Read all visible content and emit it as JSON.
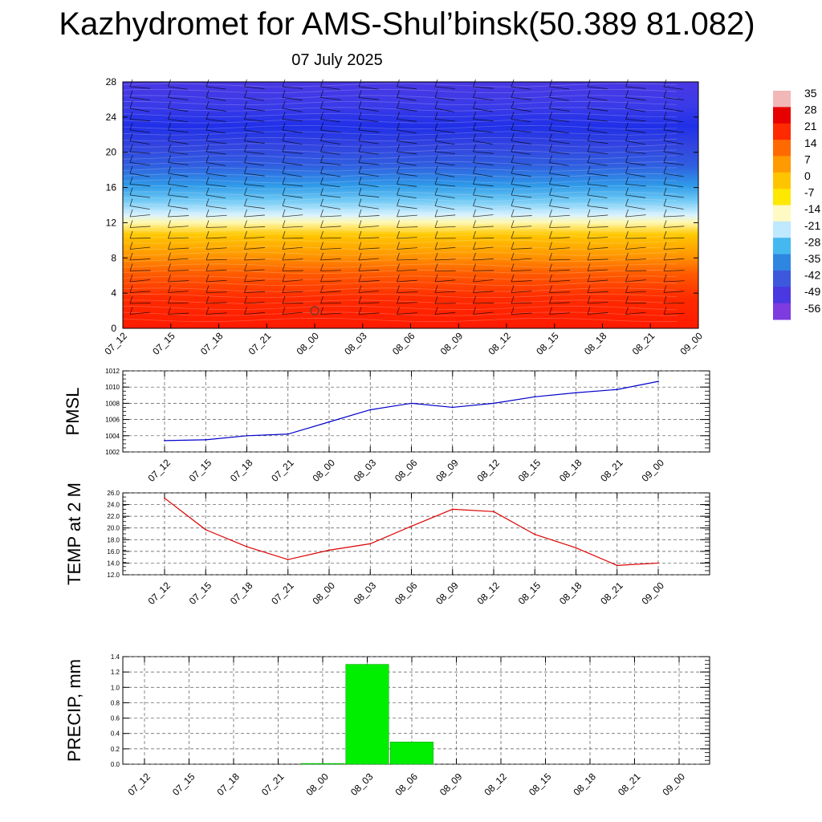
{
  "title": "Kazhydromet for AMS-Shul’binsk(50.389 81.082)",
  "subtitle": "07 July 2025",
  "colorbar": {
    "labels": [
      "35",
      "28",
      "21",
      "14",
      "7",
      "0",
      "-7",
      "-14",
      "-21",
      "-28",
      "-35",
      "-42",
      "-49",
      "-56"
    ],
    "colors": [
      "#f2b8b8",
      "#e60000",
      "#ff2a00",
      "#ff6a00",
      "#ff9a00",
      "#ffc400",
      "#ffe800",
      "#fff9c4",
      "#bfe9ff",
      "#45b8f0",
      "#2f86e0",
      "#3d58dc",
      "#4a38e0",
      "#7d3be0"
    ]
  },
  "chart_data": [
    {
      "type": "heatmap",
      "name": "cross-section",
      "categories": [
        "07_12",
        "07_15",
        "07_18",
        "07_21",
        "08_00",
        "08_03",
        "08_06",
        "08_09",
        "08_12",
        "08_15",
        "08_18",
        "08_21",
        "09_00"
      ],
      "y_ticks": [
        "0",
        "4",
        "8",
        "12",
        "16",
        "20",
        "24",
        "28"
      ],
      "ylim": [
        0,
        28
      ],
      "levels_km": [
        0,
        4,
        8,
        12,
        16,
        20,
        24,
        28
      ],
      "temperature_by_level": [
        25,
        12,
        3,
        -8,
        -33,
        -48,
        -54,
        -56
      ],
      "wind_barbs": true
    },
    {
      "type": "line",
      "ylabel": "PMSL",
      "categories": [
        "07_12",
        "07_15",
        "07_18",
        "07_21",
        "08_00",
        "08_03",
        "08_06",
        "08_09",
        "08_12",
        "08_15",
        "08_18",
        "08_21",
        "09_00"
      ],
      "series": [
        {
          "values": [
            1003.4,
            1003.5,
            1004.0,
            1004.2,
            1005.7,
            1007.2,
            1008.0,
            1007.5,
            1008.0,
            1008.8,
            1009.3,
            1009.7,
            1010.7
          ],
          "color": "#0000cc"
        }
      ],
      "ylim": [
        1002,
        1012
      ],
      "y_ticks": [
        "1002",
        "1004",
        "1006",
        "1008",
        "1010",
        "1012"
      ],
      "grid": true
    },
    {
      "type": "line",
      "ylabel": "TEMP at 2 M",
      "categories": [
        "07_12",
        "07_15",
        "07_18",
        "07_21",
        "08_00",
        "08_03",
        "08_06",
        "08_09",
        "08_12",
        "08_15",
        "08_18",
        "08_21",
        "09_00"
      ],
      "series": [
        {
          "values": [
            25.1,
            19.7,
            16.8,
            14.6,
            16.2,
            17.3,
            20.3,
            23.2,
            22.8,
            18.9,
            16.6,
            13.6,
            14.0
          ],
          "color": "#dd0000"
        }
      ],
      "ylim": [
        12,
        26
      ],
      "y_ticks": [
        "12.0",
        "14.0",
        "16.0",
        "18.0",
        "20.0",
        "22.0",
        "24.0",
        "26.0"
      ],
      "grid": true
    },
    {
      "type": "bar",
      "ylabel": "PRECIP, mm",
      "categories": [
        "07_12",
        "07_15",
        "07_18",
        "07_21",
        "08_00",
        "08_03",
        "08_06",
        "08_09",
        "08_12",
        "08_15",
        "08_18",
        "08_21",
        "09_00"
      ],
      "values": [
        0,
        0,
        0,
        0,
        0.01,
        1.3,
        0.29,
        0,
        0,
        0,
        0,
        0,
        0
      ],
      "color": "#00ee00",
      "ylim": [
        0,
        1.4
      ],
      "y_ticks": [
        "0.0",
        "0.2",
        "0.4",
        "0.6",
        "0.8",
        "1.0",
        "1.2",
        "1.4"
      ],
      "grid": true
    }
  ]
}
